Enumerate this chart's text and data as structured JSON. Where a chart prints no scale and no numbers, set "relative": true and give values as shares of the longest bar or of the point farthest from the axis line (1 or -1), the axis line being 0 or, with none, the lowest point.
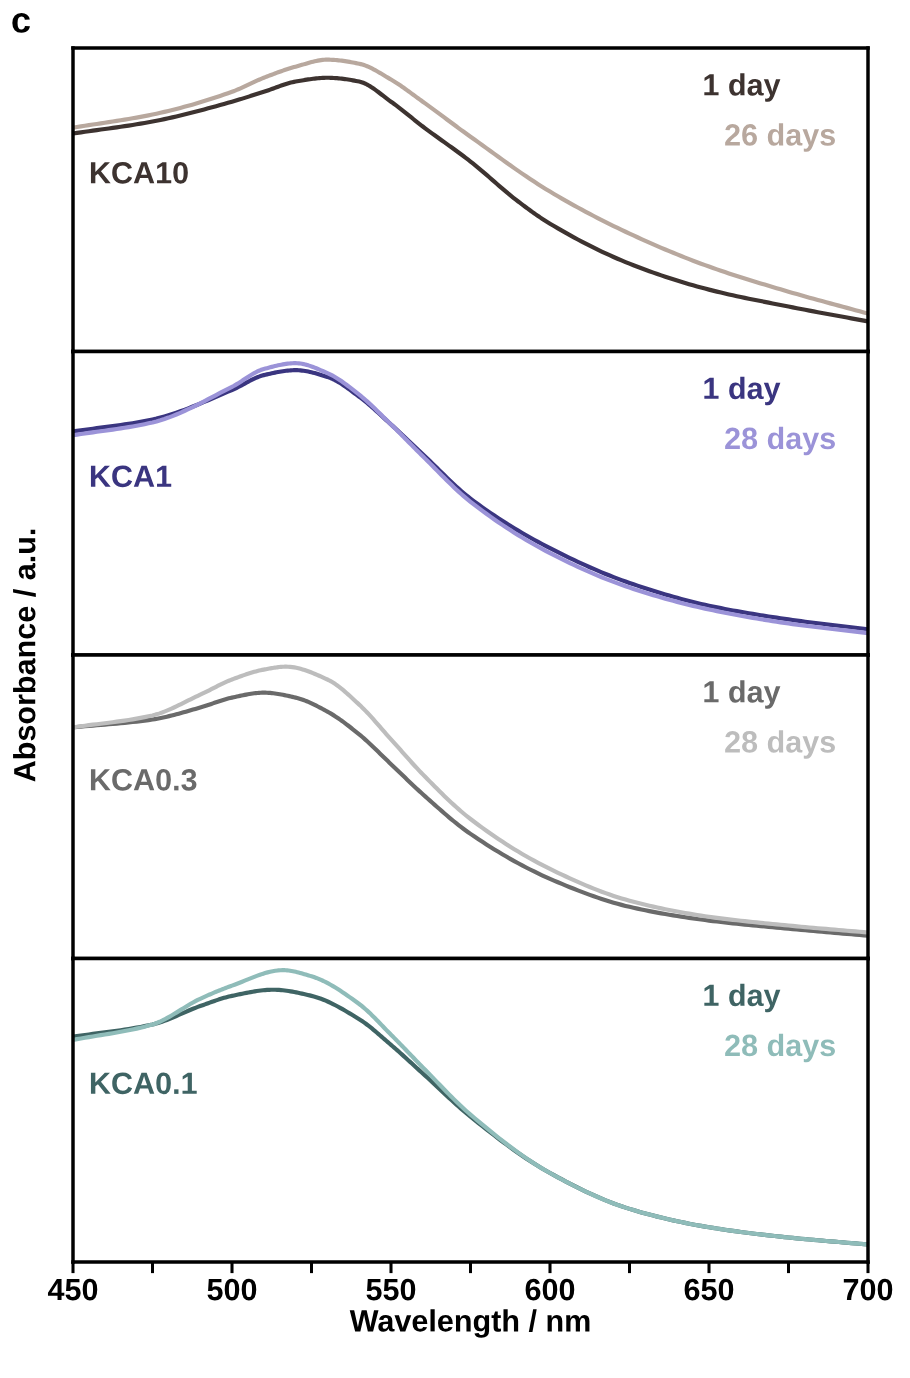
{
  "chart_data": [
    {
      "type": "line",
      "relative": true,
      "annotations": [
        "c",
        "KCA10"
      ],
      "ylabel": "Absorbance / a.u.",
      "xlim": [
        450,
        700
      ],
      "tick_labels": false,
      "legend": "top right",
      "series": [
        {
          "name": "1 day",
          "color": "#3d3330",
          "x": [
            450,
            475,
            500,
            510,
            520,
            530,
            540,
            550,
            560,
            575,
            590,
            600,
            625,
            650,
            675,
            700
          ],
          "values": [
            0.747,
            0.788,
            0.856,
            0.89,
            0.925,
            0.938,
            0.925,
            0.856,
            0.771,
            0.651,
            0.514,
            0.438,
            0.301,
            0.212,
            0.154,
            0.103
          ]
        },
        {
          "name": "26 days",
          "color": "#b8a89e",
          "x": [
            450,
            475,
            500,
            510,
            520,
            530,
            540,
            550,
            560,
            575,
            600,
            625,
            650,
            675,
            700
          ],
          "values": [
            0.767,
            0.812,
            0.89,
            0.938,
            0.976,
            1,
            0.986,
            0.932,
            0.856,
            0.736,
            0.548,
            0.404,
            0.291,
            0.205,
            0.13
          ]
        }
      ]
    },
    {
      "type": "line",
      "relative": true,
      "annotations": [
        "KCA1"
      ],
      "xlim": [
        450,
        700
      ],
      "tick_labels": false,
      "legend": "top right",
      "series": [
        {
          "name": "1 day",
          "color": "#3a3580",
          "x": [
            450,
            475,
            500,
            510,
            520,
            530,
            540,
            550,
            560,
            575,
            600,
            625,
            650,
            675,
            700
          ],
          "values": [
            0.766,
            0.807,
            0.908,
            0.959,
            0.976,
            0.953,
            0.885,
            0.79,
            0.688,
            0.536,
            0.366,
            0.247,
            0.169,
            0.122,
            0.088
          ]
        },
        {
          "name": "28 days",
          "color": "#9b93d8",
          "x": [
            450,
            475,
            500,
            510,
            520,
            530,
            540,
            550,
            560,
            575,
            600,
            625,
            650,
            675,
            700
          ],
          "values": [
            0.753,
            0.797,
            0.919,
            0.98,
            1,
            0.966,
            0.892,
            0.79,
            0.681,
            0.525,
            0.349,
            0.231,
            0.156,
            0.108,
            0.075
          ]
        }
      ]
    },
    {
      "type": "line",
      "relative": true,
      "annotations": [
        "KCA0.3"
      ],
      "xlim": [
        450,
        700
      ],
      "tick_labels": false,
      "legend": "top right",
      "series": [
        {
          "name": "1 day",
          "color": "#6a6a6a",
          "x": [
            450,
            475,
            490,
            500,
            510,
            520,
            530,
            540,
            550,
            560,
            575,
            600,
            625,
            650,
            675,
            700
          ],
          "values": [
            0.792,
            0.819,
            0.86,
            0.894,
            0.911,
            0.894,
            0.846,
            0.768,
            0.666,
            0.563,
            0.427,
            0.273,
            0.177,
            0.13,
            0.102,
            0.078
          ]
        },
        {
          "name": "28 days",
          "color": "#bdbdbd",
          "x": [
            450,
            475,
            490,
            500,
            510,
            517,
            530,
            540,
            550,
            560,
            575,
            600,
            625,
            650,
            675,
            700
          ],
          "values": [
            0.792,
            0.833,
            0.904,
            0.956,
            0.99,
            1,
            0.956,
            0.87,
            0.751,
            0.631,
            0.478,
            0.307,
            0.198,
            0.143,
            0.113,
            0.089
          ]
        }
      ]
    },
    {
      "type": "line",
      "relative": true,
      "annotations": [
        "KCA0.1"
      ],
      "xlabel": "Wavelength / nm",
      "xlim": [
        450,
        700
      ],
      "tick_labels": "x",
      "legend": "top right",
      "xticks": [
        450,
        {
          "value": 475,
          "label": null
        },
        500,
        {
          "value": 525,
          "label": null
        },
        550,
        {
          "value": 575,
          "label": null
        },
        600,
        {
          "value": 625,
          "label": null
        },
        650,
        {
          "value": 675,
          "label": null
        },
        700
      ],
      "series": [
        {
          "name": "1 day",
          "color": "#3f6464",
          "x": [
            450,
            475,
            490,
            500,
            513,
            525,
            540,
            550,
            560,
            575,
            600,
            625,
            650,
            675,
            700
          ],
          "values": [
            0.772,
            0.814,
            0.877,
            0.912,
            0.933,
            0.912,
            0.832,
            0.744,
            0.646,
            0.498,
            0.305,
            0.182,
            0.119,
            0.084,
            0.06
          ]
        },
        {
          "name": "28 days",
          "color": "#8fbcb9",
          "x": [
            450,
            475,
            490,
            500,
            516,
            525,
            540,
            550,
            560,
            575,
            600,
            625,
            650,
            675,
            700
          ],
          "values": [
            0.761,
            0.814,
            0.902,
            0.947,
            1,
            0.979,
            0.884,
            0.779,
            0.667,
            0.505,
            0.305,
            0.182,
            0.119,
            0.084,
            0.06
          ]
        }
      ]
    }
  ]
}
